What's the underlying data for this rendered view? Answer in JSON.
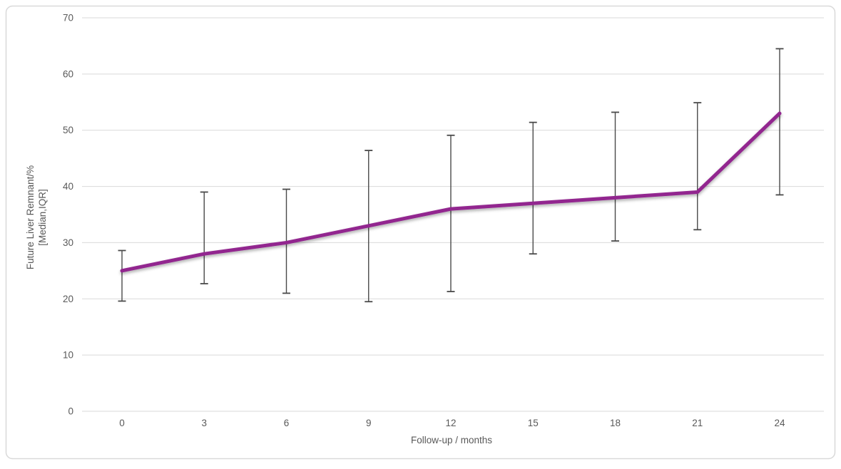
{
  "chart_data": {
    "type": "line",
    "title": "",
    "xlabel": "Follow-up / months",
    "ylabel_line1": "Future Liver Remnant/%",
    "ylabel_line2": "[Median,IQR]",
    "x": [
      0,
      3,
      6,
      9,
      12,
      15,
      18,
      21,
      24
    ],
    "x_ticks": [
      0,
      3,
      6,
      9,
      12,
      15,
      18,
      21,
      24
    ],
    "y_ticks": [
      0,
      10,
      20,
      30,
      40,
      50,
      60,
      70
    ],
    "xlim": [
      0,
      24
    ],
    "ylim": [
      0,
      70
    ],
    "grid": "horizontal",
    "legend": "none",
    "series": [
      {
        "name": "Future Liver Remnant median",
        "values": [
          25,
          28,
          30,
          33,
          36,
          37,
          38,
          39,
          53
        ],
        "error_low": [
          19.6,
          22.7,
          21.0,
          19.5,
          21.3,
          28.0,
          30.3,
          32.3,
          38.5
        ],
        "error_high": [
          28.6,
          39.0,
          39.5,
          46.4,
          49.1,
          51.4,
          53.2,
          54.9,
          64.5
        ]
      }
    ],
    "colors": {
      "line": "#92278F",
      "error_bar": "#4a4a4a",
      "gridline": "#D9D9D9",
      "tick_label": "#595959",
      "axis_title": "#595959",
      "frame_border": "#D9D9D9",
      "background": "#FFFFFF"
    }
  }
}
